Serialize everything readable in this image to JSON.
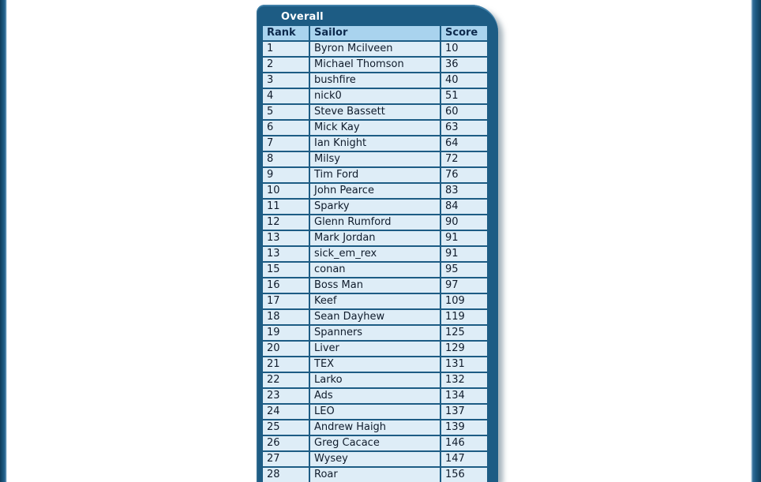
{
  "colors": {
    "page_background": "#ffffff",
    "edge_stripe": "#1d5c85",
    "panel_background": "#1d5c84",
    "panel_title_text": "#ffffff",
    "header_cell_background": "#a9d3ee",
    "header_cell_text": "#0d2a4d",
    "row_background": "#deedf7",
    "row_text": "#101c2c",
    "grid_border": "#1d5c84"
  },
  "panel": {
    "title": "Overall"
  },
  "table": {
    "columns": [
      "Rank",
      "Sailor",
      "Score"
    ],
    "rows": [
      {
        "rank": "1",
        "sailor": "Byron Mcilveen",
        "score": "10"
      },
      {
        "rank": "2",
        "sailor": "Michael Thomson",
        "score": "36"
      },
      {
        "rank": "3",
        "sailor": "bushfire",
        "score": "40"
      },
      {
        "rank": "4",
        "sailor": "nick0",
        "score": "51"
      },
      {
        "rank": "5",
        "sailor": "Steve Bassett",
        "score": "60"
      },
      {
        "rank": "6",
        "sailor": "Mick Kay",
        "score": "63"
      },
      {
        "rank": "7",
        "sailor": "Ian Knight",
        "score": "64"
      },
      {
        "rank": "8",
        "sailor": "Milsy",
        "score": "72"
      },
      {
        "rank": "9",
        "sailor": "Tim Ford",
        "score": "76"
      },
      {
        "rank": "10",
        "sailor": "John Pearce",
        "score": "83"
      },
      {
        "rank": "11",
        "sailor": "Sparky",
        "score": "84"
      },
      {
        "rank": "12",
        "sailor": "Glenn Rumford",
        "score": "90"
      },
      {
        "rank": "13",
        "sailor": "Mark Jordan",
        "score": "91"
      },
      {
        "rank": "13",
        "sailor": "sick_em_rex",
        "score": "91"
      },
      {
        "rank": "15",
        "sailor": "conan",
        "score": "95"
      },
      {
        "rank": "16",
        "sailor": "Boss Man",
        "score": "97"
      },
      {
        "rank": "17",
        "sailor": "Keef",
        "score": "109"
      },
      {
        "rank": "18",
        "sailor": "Sean Dayhew",
        "score": "119"
      },
      {
        "rank": "19",
        "sailor": "Spanners",
        "score": "125"
      },
      {
        "rank": "20",
        "sailor": "Liver",
        "score": "129"
      },
      {
        "rank": "21",
        "sailor": "TEX",
        "score": "131"
      },
      {
        "rank": "22",
        "sailor": "Larko",
        "score": "132"
      },
      {
        "rank": "23",
        "sailor": "Ads",
        "score": "134"
      },
      {
        "rank": "24",
        "sailor": "LEO",
        "score": "137"
      },
      {
        "rank": "25",
        "sailor": "Andrew Haigh",
        "score": "139"
      },
      {
        "rank": "26",
        "sailor": "Greg Cacace",
        "score": "146"
      },
      {
        "rank": "27",
        "sailor": "Wysey",
        "score": "147"
      },
      {
        "rank": "28",
        "sailor": "Roar",
        "score": "156"
      }
    ]
  }
}
